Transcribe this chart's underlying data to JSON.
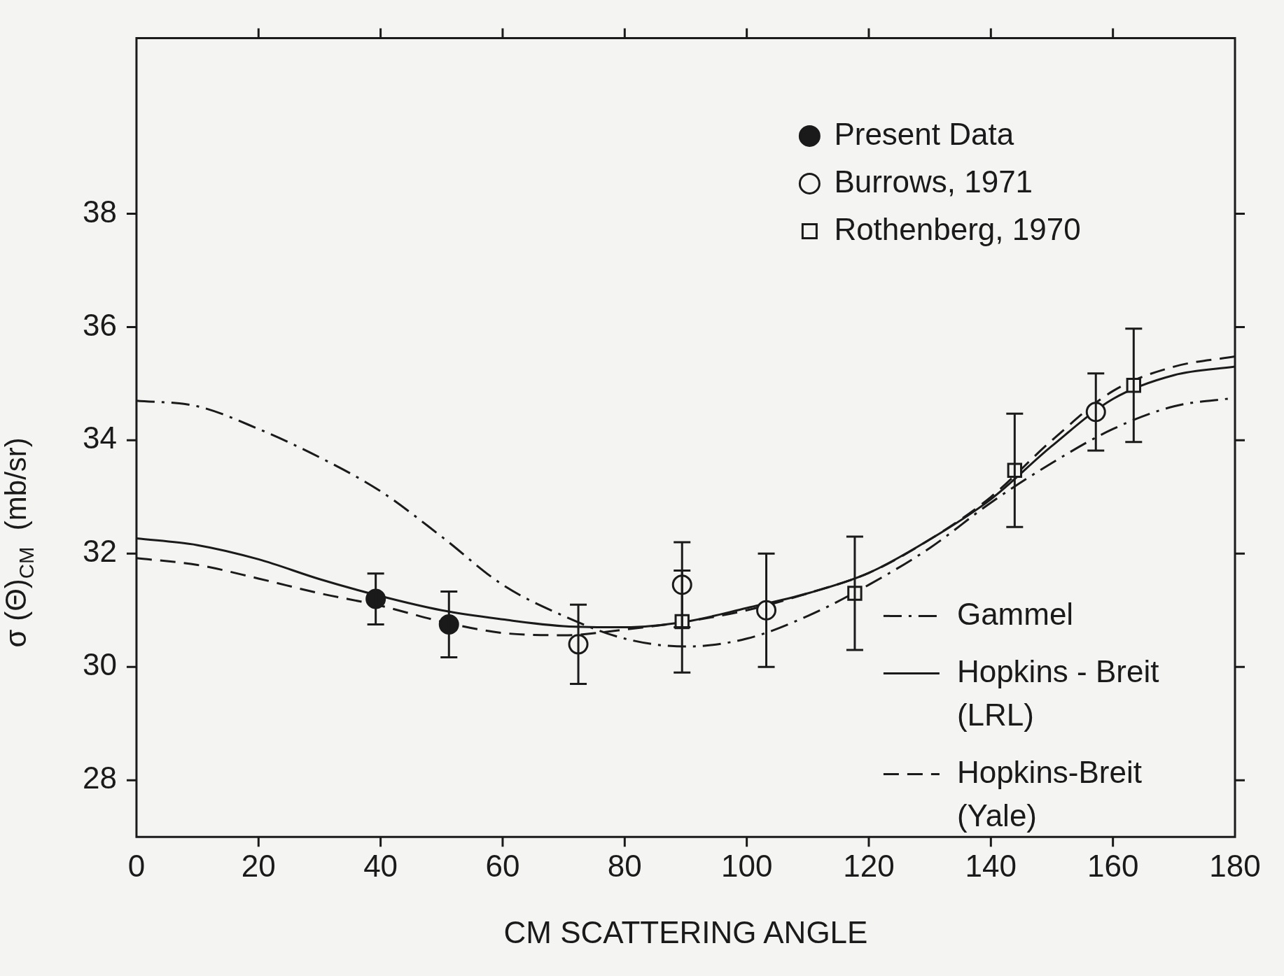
{
  "chart_data": {
    "type": "scatter",
    "xlabel": "CM SCATTERING ANGLE",
    "ylabel": "σ (Θ)$_{CM}$  (mb/sr)",
    "xlim": [
      0,
      180
    ],
    "xticks": [
      0,
      20,
      40,
      60,
      80,
      100,
      120,
      140,
      160,
      180
    ],
    "ylim": [
      27,
      41.1
    ],
    "yticks": [
      28,
      30,
      32,
      34,
      36,
      38
    ],
    "grid": false,
    "legend": "right",
    "series": [
      {
        "name": "Present Data",
        "type": "scatter",
        "marker": "circle",
        "color": "#1a1a1a",
        "x": [
          39.2,
          51.2
        ],
        "values": [
          31.2,
          30.75
        ],
        "errors": [
          0.45,
          0.58
        ]
      },
      {
        "name": "Burrows, 1971",
        "type": "scatter",
        "marker": "circle-open",
        "color": "#1a1a1a",
        "x": [
          72.4,
          89.4,
          103.2,
          157.2
        ],
        "values": [
          30.4,
          31.45,
          31.0,
          34.5
        ],
        "errors": [
          0.7,
          0.75,
          1.0,
          0.68
        ]
      },
      {
        "name": "Rothenberg, 1970",
        "type": "scatter",
        "marker": "square-open",
        "color": "#1a1a1a",
        "x": [
          89.4,
          117.7,
          143.9,
          163.4
        ],
        "values": [
          30.8,
          31.3,
          33.47,
          34.97
        ],
        "errors": [
          0.9,
          1.0,
          1.0,
          1.0
        ]
      },
      {
        "name": "Gammel",
        "type": "line",
        "line_style": "dashdot",
        "color": "#1a1a1a",
        "x": [
          0,
          10,
          20,
          30,
          40,
          50,
          60,
          70,
          80,
          90,
          100,
          110,
          120,
          130,
          140,
          150,
          160,
          170,
          180
        ],
        "values": [
          34.7,
          34.6,
          34.2,
          33.7,
          33.1,
          32.3,
          31.45,
          30.9,
          30.5,
          30.36,
          30.5,
          30.9,
          31.45,
          32.1,
          32.9,
          33.6,
          34.2,
          34.6,
          34.75
        ]
      },
      {
        "name": "Hopkins - Breit (LRL)",
        "type": "line",
        "line_style": "solid",
        "color": "#1a1a1a",
        "x": [
          0,
          10,
          20,
          30,
          40,
          50,
          60,
          70,
          80,
          90,
          100,
          110,
          120,
          130,
          140,
          150,
          160,
          170,
          180
        ],
        "values": [
          32.27,
          32.15,
          31.9,
          31.55,
          31.25,
          31.0,
          30.84,
          30.72,
          30.7,
          30.8,
          31.04,
          31.3,
          31.66,
          32.25,
          32.96,
          33.9,
          34.73,
          35.15,
          35.3
        ]
      },
      {
        "name": "Hopkins-Breit (Yale)",
        "type": "line",
        "line_style": "dashed",
        "color": "#1a1a1a",
        "x": [
          0,
          10,
          20,
          30,
          40,
          50,
          60,
          70,
          80,
          90,
          100,
          110,
          120,
          130,
          140,
          150,
          160,
          170,
          180
        ],
        "values": [
          31.92,
          31.8,
          31.56,
          31.3,
          31.08,
          30.8,
          30.6,
          30.56,
          30.66,
          30.8,
          31.0,
          31.3,
          31.66,
          32.25,
          33.0,
          34.0,
          34.87,
          35.3,
          35.48
        ]
      }
    ]
  }
}
